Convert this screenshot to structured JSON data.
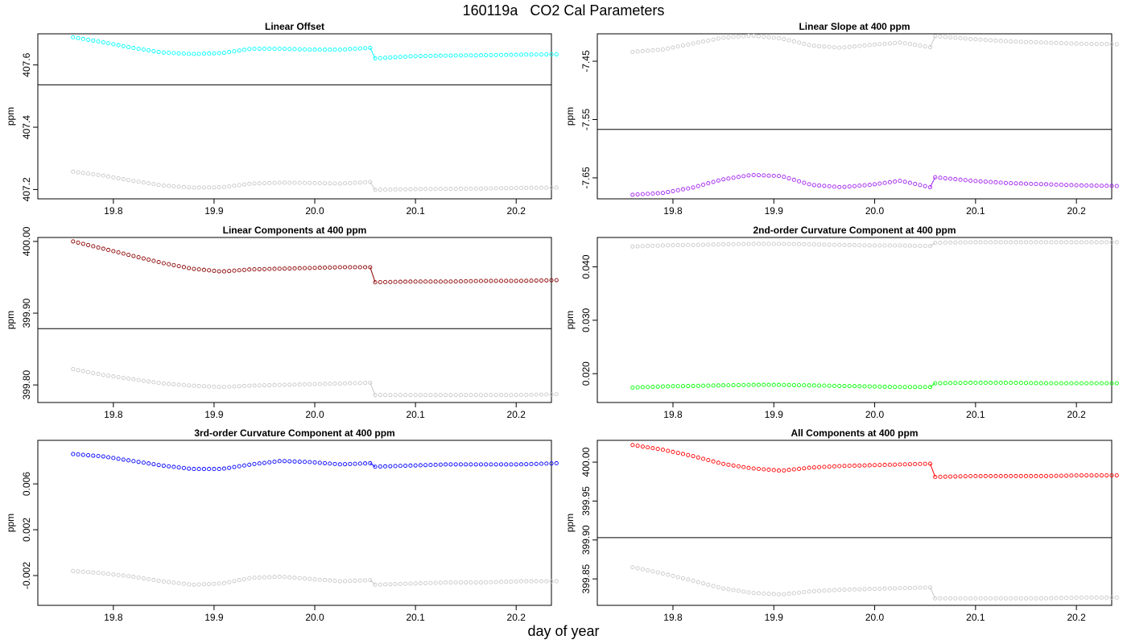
{
  "title": "160119a   CO2 Cal Parameters",
  "xlabel": "day of year",
  "chart_data": [
    {
      "type": "scatter",
      "title": "Linear Offset",
      "ylabel": "ppm",
      "x_ticks": [
        "19.8",
        "19.9",
        "20.0",
        "20.1",
        "20.2"
      ],
      "xlim": [
        19.725,
        20.235
      ],
      "ylim": [
        407.17,
        407.7
      ],
      "y_ticks": [
        {
          "value": 407.2,
          "label": "407.2"
        },
        {
          "value": 407.4,
          "label": "407.4"
        },
        {
          "value": 407.6,
          "label": "407.6"
        }
      ],
      "hline": 407.536,
      "x_start": 19.76,
      "x_step": 0.005,
      "break_index": 59,
      "series": [
        {
          "color": "#00ffff",
          "n1": 60,
          "n2": 37,
          "values": [
            407.689,
            407.673,
            407.655,
            407.64,
            407.635,
            407.638,
            407.652,
            407.652,
            407.649,
            407.649,
            407.655,
            407.621,
            407.628,
            407.63,
            407.631,
            407.633,
            407.634
          ]
        },
        {
          "color": "#c8c8c8",
          "n1": 60,
          "n2": 37,
          "values": [
            407.257,
            407.245,
            407.228,
            407.213,
            407.206,
            407.207,
            407.219,
            407.222,
            407.221,
            407.219,
            407.224,
            407.199,
            407.201,
            407.202,
            407.203,
            407.205,
            407.206
          ]
        }
      ]
    },
    {
      "type": "scatter",
      "title": "Linear Slope at 400 ppm",
      "ylabel": "ppm",
      "x_ticks": [
        "19.8",
        "19.9",
        "20.0",
        "20.1",
        "20.2"
      ],
      "xlim": [
        19.725,
        20.235
      ],
      "ylim": [
        -7.686,
        -7.403
      ],
      "y_ticks": [
        {
          "value": -7.65,
          "label": "-7.65"
        },
        {
          "value": -7.55,
          "label": "-7.55"
        },
        {
          "value": -7.45,
          "label": "-7.45"
        }
      ],
      "hline": -7.567,
      "x_start": 19.76,
      "x_step": 0.005,
      "break_index": 59,
      "series": [
        {
          "color": "#c8c8c8",
          "n1": 60,
          "n2": 37,
          "values": [
            -7.434,
            -7.43,
            -7.42,
            -7.41,
            -7.406,
            -7.411,
            -7.423,
            -7.427,
            -7.422,
            -7.418,
            -7.426,
            -7.407,
            -7.412,
            -7.416,
            -7.418,
            -7.42,
            -7.421
          ]
        },
        {
          "color": "#a020f0",
          "n1": 60,
          "n2": 37,
          "values": [
            -7.679,
            -7.676,
            -7.667,
            -7.653,
            -7.645,
            -7.647,
            -7.662,
            -7.666,
            -7.662,
            -7.655,
            -7.666,
            -7.649,
            -7.655,
            -7.659,
            -7.661,
            -7.663,
            -7.664
          ]
        }
      ]
    },
    {
      "type": "scatter",
      "title": "Linear Components at 400 ppm",
      "ylabel": "ppm",
      "x_ticks": [
        "19.8",
        "19.9",
        "20.0",
        "20.1",
        "20.2"
      ],
      "xlim": [
        19.725,
        20.235
      ],
      "ylim": [
        399.7755,
        400.0055
      ],
      "y_ticks": [
        {
          "value": 399.8,
          "label": "399.80"
        },
        {
          "value": 399.9,
          "label": "399.90"
        },
        {
          "value": 400.0,
          "label": "400.00"
        }
      ],
      "hline": 399.8785,
      "x_start": 19.76,
      "x_step": 0.005,
      "break_index": 59,
      "series": [
        {
          "color": "#8b0000",
          "n1": 60,
          "n2": 37,
          "values": [
            400.0,
            399.99,
            399.98,
            399.97,
            399.962,
            399.958,
            399.961,
            399.962,
            399.963,
            399.964,
            399.964,
            399.943,
            399.944,
            399.944,
            399.945,
            399.945,
            399.946
          ]
        },
        {
          "color": "#c8c8c8",
          "n1": 60,
          "n2": 37,
          "values": [
            399.822,
            399.814,
            399.808,
            399.802,
            399.799,
            399.797,
            399.799,
            399.8,
            399.801,
            399.802,
            399.803,
            399.786,
            399.786,
            399.786,
            399.786,
            399.786,
            399.787
          ]
        }
      ]
    },
    {
      "type": "scatter",
      "title": "2nd-order Curvature Component at 400 ppm",
      "ylabel": "ppm",
      "x_ticks": [
        "19.8",
        "19.9",
        "20.0",
        "20.1",
        "20.2"
      ],
      "xlim": [
        19.725,
        20.235
      ],
      "ylim": [
        0.0146,
        0.0455
      ],
      "y_ticks": [
        {
          "value": 0.02,
          "label": "0.020"
        },
        {
          "value": 0.03,
          "label": "0.030"
        },
        {
          "value": 0.04,
          "label": "0.040"
        }
      ],
      "hline": null,
      "x_start": 19.76,
      "x_step": 0.005,
      "break_index": 59,
      "series": [
        {
          "color": "#c8c8c8",
          "n1": 60,
          "n2": 37,
          "values": [
            0.0438,
            0.044,
            0.0441,
            0.0442,
            0.0443,
            0.0443,
            0.0442,
            0.0441,
            0.044,
            0.044,
            0.0439,
            0.0445,
            0.0446,
            0.0446,
            0.0446,
            0.0446,
            0.0446
          ]
        },
        {
          "color": "#00ff00",
          "n1": 60,
          "n2": 37,
          "values": [
            0.0174,
            0.0176,
            0.0177,
            0.0178,
            0.0179,
            0.0179,
            0.0178,
            0.0177,
            0.0176,
            0.0175,
            0.0175,
            0.0182,
            0.0183,
            0.0183,
            0.0182,
            0.0182,
            0.0182
          ]
        }
      ]
    },
    {
      "type": "scatter",
      "title": "3rd-order Curvature Component at 400 ppm",
      "ylabel": "ppm",
      "x_ticks": [
        "19.8",
        "19.9",
        "20.0",
        "20.1",
        "20.2"
      ],
      "xlim": [
        19.725,
        20.235
      ],
      "ylim": [
        -0.0046,
        0.0098
      ],
      "y_ticks": [
        {
          "value": -0.002,
          "label": "-0.002"
        },
        {
          "value": 0.002,
          "label": "0.002"
        },
        {
          "value": 0.006,
          "label": "0.006"
        }
      ],
      "hline": null,
      "x_start": 19.76,
      "x_step": 0.005,
      "break_index": 59,
      "series": [
        {
          "color": "#0000ff",
          "n1": 60,
          "n2": 37,
          "values": [
            0.0086,
            0.0084,
            0.008,
            0.0076,
            0.0073,
            0.0073,
            0.0077,
            0.008,
            0.0079,
            0.0077,
            0.0078,
            0.0075,
            0.0076,
            0.0077,
            0.0077,
            0.0077,
            0.0078
          ]
        },
        {
          "color": "#c8c8c8",
          "n1": 60,
          "n2": 37,
          "values": [
            -0.0016,
            -0.0018,
            -0.0021,
            -0.0025,
            -0.0028,
            -0.0027,
            -0.0022,
            -0.0021,
            -0.0023,
            -0.0025,
            -0.0024,
            -0.0028,
            -0.0027,
            -0.0026,
            -0.0026,
            -0.0025,
            -0.0025
          ]
        }
      ]
    },
    {
      "type": "scatter",
      "title": "All Components at 400 ppm",
      "ylabel": "ppm",
      "x_ticks": [
        "19.8",
        "19.9",
        "20.0",
        "20.1",
        "20.2"
      ],
      "xlim": [
        19.725,
        20.235
      ],
      "ylim": [
        399.816,
        400.028
      ],
      "y_ticks": [
        {
          "value": 399.85,
          "label": "399.85"
        },
        {
          "value": 399.9,
          "label": "399.90"
        },
        {
          "value": 399.95,
          "label": "399.95"
        },
        {
          "value": 400.0,
          "label": "400.00"
        }
      ],
      "hline": 399.903,
      "x_start": 19.76,
      "x_step": 0.005,
      "break_index": 59,
      "series": [
        {
          "color": "#ff0000",
          "n1": 60,
          "n2": 37,
          "values": [
            400.022,
            400.016,
            400.008,
            399.998,
            399.992,
            399.989,
            399.993,
            399.995,
            399.996,
            399.997,
            399.998,
            399.981,
            399.982,
            399.982,
            399.982,
            399.983,
            399.983
          ]
        },
        {
          "color": "#c8c8c8",
          "n1": 60,
          "n2": 37,
          "values": [
            399.865,
            399.857,
            399.848,
            399.838,
            399.832,
            399.83,
            399.834,
            399.836,
            399.837,
            399.838,
            399.839,
            399.825,
            399.825,
            399.825,
            399.825,
            399.826,
            399.826
          ]
        }
      ]
    }
  ]
}
